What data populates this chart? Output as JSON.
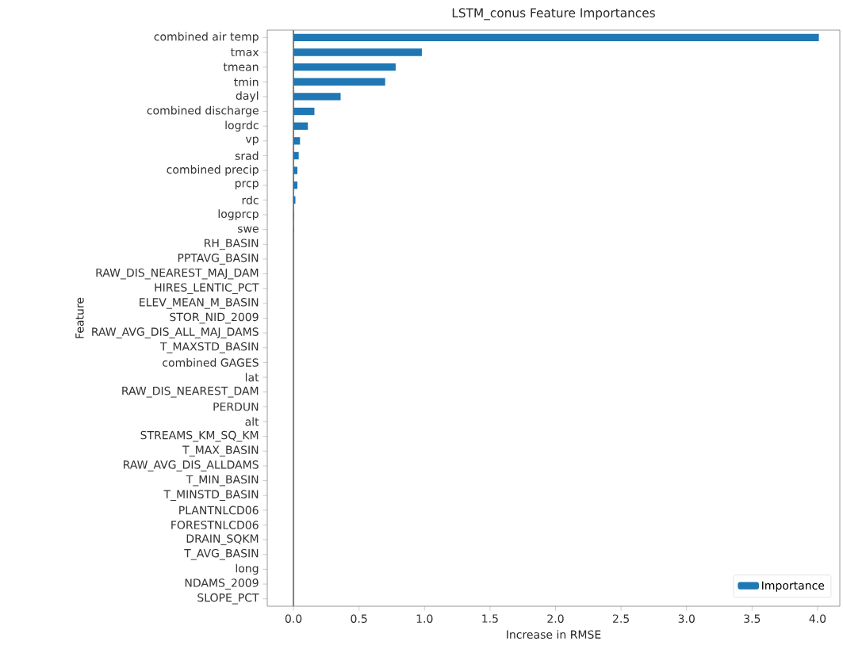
{
  "chart_data": {
    "type": "bar",
    "orientation": "horizontal",
    "title": "LSTM_conus Feature Importances",
    "xlabel": "Increase in RMSE",
    "ylabel": "Feature",
    "categories": [
      "combined air temp",
      "tmax",
      "tmean",
      "tmin",
      "dayl",
      "combined discharge",
      "logrdc",
      "vp",
      "srad",
      "combined precip",
      "prcp",
      "rdc",
      "logprcp",
      "swe",
      "RH_BASIN",
      "PPTAVG_BASIN",
      "RAW_DIS_NEAREST_MAJ_DAM",
      "HIRES_LENTIC_PCT",
      "ELEV_MEAN_M_BASIN",
      "STOR_NID_2009",
      "RAW_AVG_DIS_ALL_MAJ_DAMS",
      "T_MAXSTD_BASIN",
      "combined GAGES",
      "lat",
      "RAW_DIS_NEAREST_DAM",
      "PERDUN",
      "alt",
      "STREAMS_KM_SQ_KM",
      "T_MAX_BASIN",
      "RAW_AVG_DIS_ALLDAMS",
      "T_MIN_BASIN",
      "T_MINSTD_BASIN",
      "PLANTNLCD06",
      "FORESTNLCD06",
      "DRAIN_SQKM",
      "T_AVG_BASIN",
      "long",
      "NDAMS_2009",
      "SLOPE_PCT"
    ],
    "series": [
      {
        "name": "Importance",
        "color": "#1f77b4",
        "values": [
          4.01,
          0.98,
          0.78,
          0.7,
          0.36,
          0.16,
          0.11,
          0.05,
          0.04,
          0.03,
          0.03,
          0.015,
          0.003,
          0.003,
          0,
          0,
          0,
          0,
          0,
          0,
          0,
          0,
          0,
          0,
          0,
          0,
          0,
          0,
          0,
          0,
          0,
          0,
          0,
          0,
          0,
          0,
          0,
          0,
          0
        ]
      }
    ],
    "xlim": [
      -0.2,
      4.17
    ],
    "xticks": [
      {
        "value": 0,
        "label": "0.0"
      },
      {
        "value": 0.5,
        "label": "0.5"
      },
      {
        "value": 1,
        "label": "1.0"
      },
      {
        "value": 1.5,
        "label": "1.5"
      },
      {
        "value": 2,
        "label": "2.0"
      },
      {
        "value": 2.5,
        "label": "2.5"
      },
      {
        "value": 3,
        "label": "3.0"
      },
      {
        "value": 3.5,
        "label": "3.5"
      },
      {
        "value": 4,
        "label": "4.0"
      }
    ],
    "ref_lines": [
      {
        "axis": "x",
        "value": 0,
        "color": "#808080"
      }
    ],
    "legend": "bottom right"
  }
}
